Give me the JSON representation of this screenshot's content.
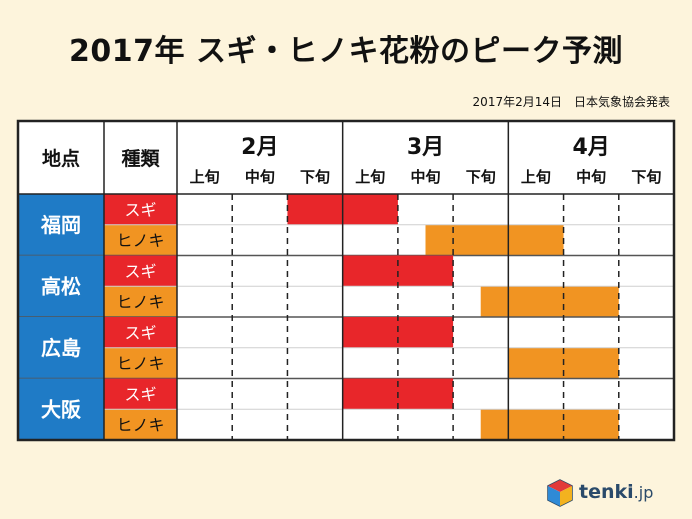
{
  "title": "2017年 スギ・ヒノキ花粉のピーク予測",
  "subtitle": "2017年2月14日　日本気象協会発表",
  "logo": {
    "text": "tenki",
    "suffix": ".jp"
  },
  "colors": {
    "sugi": "#e8262a",
    "hinoki": "#f19422",
    "city": "#1f7bc6",
    "header": "#ffffff",
    "border": "#222222"
  },
  "chart_data": {
    "type": "table",
    "header": {
      "place": "地点",
      "kind": "種類"
    },
    "months": [
      "2月",
      "3月",
      "4月"
    ],
    "periods": [
      "上旬",
      "中旬",
      "下旬"
    ],
    "rows": [
      {
        "city": "福岡",
        "series": [
          {
            "name": "スギ",
            "start": 2.0,
            "end": 4.0
          },
          {
            "name": "ヒノキ",
            "start": 4.5,
            "end": 7.0
          }
        ]
      },
      {
        "city": "高松",
        "series": [
          {
            "name": "スギ",
            "start": 3.0,
            "end": 5.0
          },
          {
            "name": "ヒノキ",
            "start": 5.5,
            "end": 8.0
          }
        ]
      },
      {
        "city": "広島",
        "series": [
          {
            "name": "スギ",
            "start": 3.0,
            "end": 5.0
          },
          {
            "name": "ヒノキ",
            "start": 6.0,
            "end": 8.0
          }
        ]
      },
      {
        "city": "大阪",
        "series": [
          {
            "name": "スギ",
            "start": 3.0,
            "end": 5.0
          },
          {
            "name": "ヒノキ",
            "start": 5.5,
            "end": 8.0
          }
        ]
      }
    ]
  }
}
